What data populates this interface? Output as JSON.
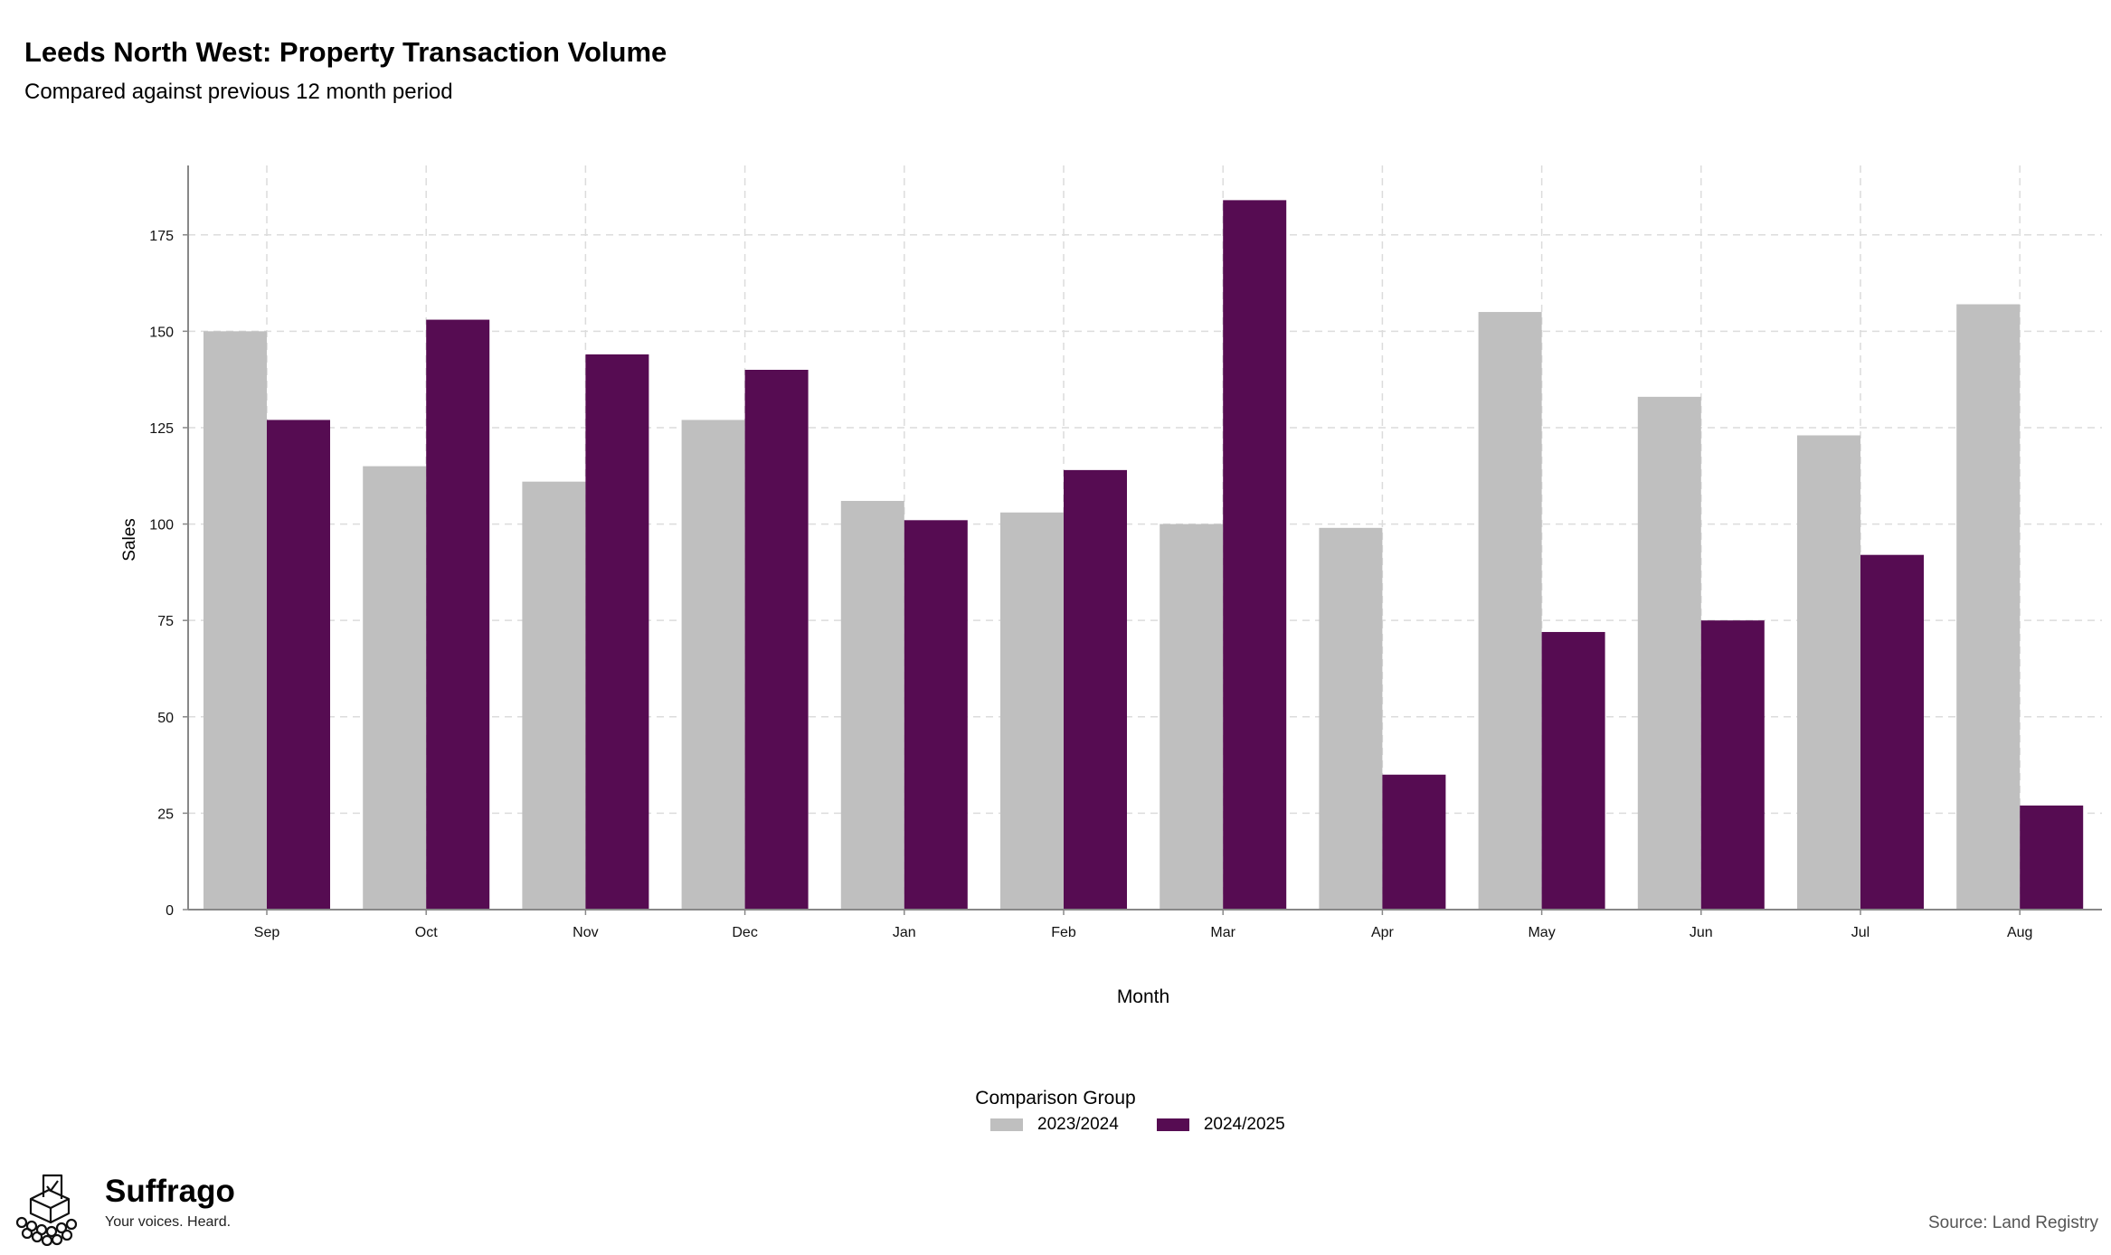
{
  "title": "Leeds North West: Property Transaction Volume",
  "subtitle": "Compared against previous 12 month period",
  "source": "Source: Land Registry",
  "brand": {
    "name": "Suffrago",
    "tagline": "Your voices. Heard.",
    "icon": "ballot-box-icon"
  },
  "legend": {
    "title": "Comparison Group"
  },
  "colors": {
    "prior": "#bfbfbf",
    "current": "#560c52",
    "grid": "#dcdcdc",
    "axis": "#888888"
  },
  "chart_data": {
    "type": "bar",
    "xlabel": "Month",
    "ylabel": "Sales",
    "categories": [
      "Sep",
      "Oct",
      "Nov",
      "Dec",
      "Jan",
      "Feb",
      "Mar",
      "Apr",
      "May",
      "Jun",
      "Jul",
      "Aug"
    ],
    "series": [
      {
        "name": "2023/2024",
        "values": [
          150,
          115,
          111,
          127,
          106,
          103,
          100,
          99,
          155,
          133,
          123,
          157
        ]
      },
      {
        "name": "2024/2025",
        "values": [
          127,
          153,
          144,
          140,
          101,
          114,
          184,
          35,
          72,
          75,
          92,
          27
        ]
      }
    ],
    "yticks": [
      0,
      25,
      50,
      75,
      100,
      125,
      150,
      175
    ],
    "ylim": [
      0,
      193
    ],
    "grid": true,
    "legend_position": "bottom"
  }
}
